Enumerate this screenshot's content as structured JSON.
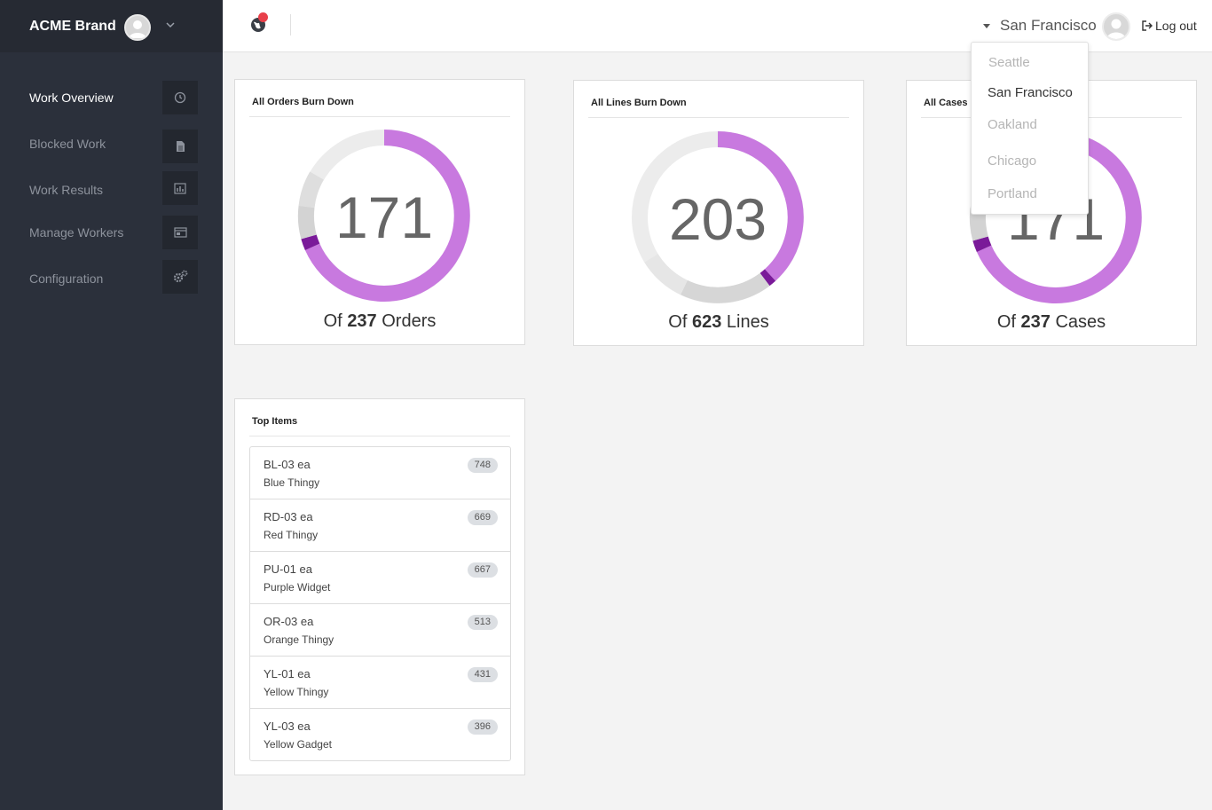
{
  "sidebar": {
    "brand": "ACME Brand",
    "nav": [
      {
        "label": "Work Overview",
        "icon": "clock-icon",
        "active": true
      },
      {
        "label": "Blocked Work",
        "icon": "document-icon",
        "active": false
      },
      {
        "label": "Work Results",
        "icon": "bar-chart-icon",
        "active": false
      },
      {
        "label": "Manage Workers",
        "icon": "id-card-icon",
        "active": false
      },
      {
        "label": "Configuration",
        "icon": "gears-icon",
        "active": false
      }
    ]
  },
  "topbar": {
    "location": "San Francisco",
    "logout": "Log out"
  },
  "location_menu": {
    "options": [
      "Seattle",
      "San Francisco",
      "Oakland",
      "Chicago",
      "Portland"
    ],
    "selected": "San Francisco"
  },
  "burndowns": [
    {
      "title": "All Orders Burn Down",
      "remaining": "171",
      "of_prefix": "Of",
      "total": "237",
      "unit": "Orders"
    },
    {
      "title": "All Lines Burn Down",
      "remaining": "203",
      "of_prefix": "Of",
      "total": "623",
      "unit": "Lines"
    },
    {
      "title": "All Cases Burn Down",
      "remaining": "171",
      "of_prefix": "Of",
      "total": "237",
      "unit": "Cases"
    }
  ],
  "top_items": {
    "title": "Top Items",
    "items": [
      {
        "sku": "BL-03 ea",
        "name": "Blue Thingy",
        "count": "748"
      },
      {
        "sku": "RD-03 ea",
        "name": "Red Thingy",
        "count": "669"
      },
      {
        "sku": "PU-01 ea",
        "name": "Purple Widget",
        "count": "667"
      },
      {
        "sku": "OR-03 ea",
        "name": "Orange Thingy",
        "count": "513"
      },
      {
        "sku": "YL-01 ea",
        "name": "Yellow Thingy",
        "count": "431"
      },
      {
        "sku": "YL-03 ea",
        "name": "Yellow Gadget",
        "count": "396"
      }
    ]
  },
  "colors": {
    "sidebar": "#2b303b",
    "accent": "#c879df",
    "accent_dark": "#7a1a99",
    "track": "#e8e8e8",
    "notification": "#e8404a"
  }
}
